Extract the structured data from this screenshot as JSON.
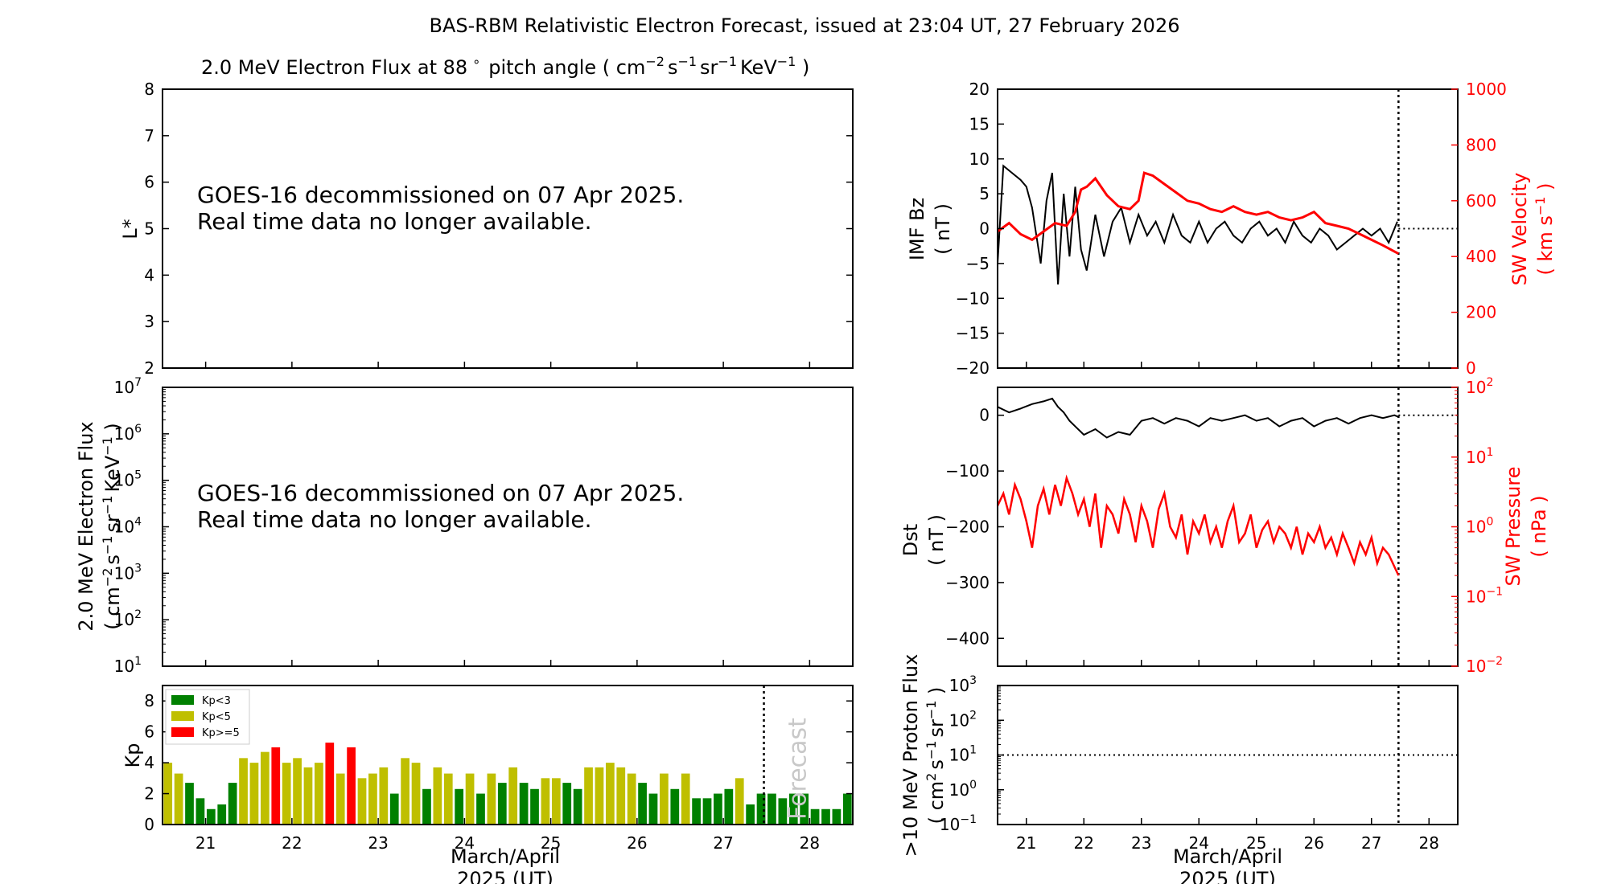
{
  "figure": {
    "title": "BAS-RBM Relativistic Electron Forecast, issued at 23:04 UT, 27 February 2026",
    "decommission_line1": "GOES-16 decommissioned on 07 Apr 2025.",
    "decommission_line2": "Real time data no longer available.",
    "xlabel_line1": "March/April",
    "xlabel_line2": "2025 (UT)",
    "forecast_label": "Forecast"
  },
  "chart_data": [
    {
      "id": "lstar",
      "type": "heatmap",
      "title_text": "2.0 MeV Electron Flux at 88",
      "title_units": "pitch angle ( cm-2 s-1 sr-1 KeV-1 )",
      "ylabel": "L*",
      "ylim": [
        2,
        8
      ],
      "yticks": [
        2,
        3,
        4,
        5,
        6,
        7,
        8
      ],
      "xlim": [
        20.5,
        28.5
      ],
      "xticks": [
        21,
        22,
        23,
        24,
        25,
        26,
        27,
        28
      ],
      "values": []
    },
    {
      "id": "eflux",
      "type": "line",
      "ylabel_line1": "2.0 MeV Electron Flux",
      "ylabel_line2": "( cm-2 s-1 sr-1 KeV-1 )",
      "yscale": "log",
      "ylim": [
        10,
        10000000
      ],
      "ytick_exponents": [
        1,
        2,
        3,
        4,
        5,
        6,
        7
      ],
      "xlim": [
        20.5,
        28.5
      ],
      "values": []
    },
    {
      "id": "kp",
      "type": "bar",
      "ylabel": "Kp",
      "ylim": [
        0,
        9
      ],
      "yticks": [
        0,
        2,
        4,
        6,
        8
      ],
      "xlim": [
        20.5,
        28.5
      ],
      "xticks": [
        21,
        22,
        23,
        24,
        25,
        26,
        27,
        28
      ],
      "forecast_start": 27.47,
      "bar_width_days": 0.1,
      "legend_position": "top-left",
      "legend": [
        {
          "label": "Kp<3",
          "color": "#008000"
        },
        {
          "label": "Kp<5",
          "color": "#bfbf00"
        },
        {
          "label": "Kp>=5",
          "color": "#ff0000"
        }
      ],
      "x_start": 20.5625,
      "x_step": 0.125,
      "values": [
        4.0,
        3.3,
        2.7,
        1.7,
        1.0,
        1.3,
        2.7,
        4.3,
        4.0,
        4.7,
        5.0,
        4.0,
        4.3,
        3.7,
        4.0,
        5.3,
        3.3,
        5.0,
        3.0,
        3.3,
        3.7,
        2.0,
        4.3,
        4.0,
        2.3,
        3.7,
        3.3,
        2.3,
        3.3,
        2.0,
        3.3,
        2.7,
        3.7,
        2.7,
        2.3,
        3.0,
        3.0,
        2.7,
        2.3,
        3.7,
        3.7,
        4.0,
        3.7,
        3.3,
        2.7,
        2.0,
        3.3,
        2.3,
        3.3,
        1.7,
        1.7,
        2.0,
        2.3,
        3.0,
        1.3,
        2.0,
        2.0,
        1.7,
        2.0,
        2.0,
        1.0,
        1.0,
        1.0,
        2.0
      ]
    },
    {
      "id": "imf",
      "type": "line",
      "ylabel_line1": "IMF Bz",
      "ylabel_line2": "( nT )",
      "ylim": [
        -20,
        20
      ],
      "yticks": [
        -20,
        -15,
        -10,
        -5,
        0,
        5,
        10,
        15,
        20
      ],
      "y2label_line1": "SW Velocity",
      "y2label_line2": "( km s-1 )",
      "y2lim": [
        0,
        1000
      ],
      "y2ticks": [
        0,
        200,
        400,
        600,
        800,
        1000
      ],
      "xlim": [
        20.5,
        28.5
      ],
      "now": 27.47,
      "series": [
        {
          "name": "IMF Bz",
          "color": "#000000",
          "x": [
            20.5,
            20.6,
            20.75,
            20.9,
            21.0,
            21.1,
            21.25,
            21.35,
            21.45,
            21.55,
            21.65,
            21.75,
            21.85,
            21.95,
            22.05,
            22.2,
            22.35,
            22.5,
            22.65,
            22.8,
            22.95,
            23.1,
            23.25,
            23.4,
            23.55,
            23.7,
            23.85,
            24.0,
            24.15,
            24.3,
            24.45,
            24.6,
            24.75,
            24.9,
            25.05,
            25.2,
            25.35,
            25.5,
            25.65,
            25.8,
            25.95,
            26.1,
            26.25,
            26.4,
            26.55,
            26.7,
            26.85,
            27.0,
            27.15,
            27.3,
            27.45
          ],
          "y": [
            -5,
            9,
            8,
            7,
            6,
            3,
            -5,
            4,
            8,
            -8,
            5,
            -4,
            6,
            -3,
            -6,
            2,
            -4,
            1,
            3,
            -2,
            2,
            -1,
            1,
            -2,
            2,
            -1,
            -2,
            1,
            -2,
            0,
            1,
            -1,
            -2,
            0,
            1,
            -1,
            0,
            -2,
            1,
            -1,
            -2,
            0,
            -1,
            -3,
            -2,
            -1,
            0,
            -1,
            0,
            -2,
            1
          ]
        },
        {
          "name": "SW Velocity",
          "color": "#ff0000",
          "x": [
            20.5,
            20.7,
            20.9,
            21.1,
            21.3,
            21.5,
            21.7,
            21.85,
            21.95,
            22.05,
            22.2,
            22.4,
            22.6,
            22.8,
            22.95,
            23.05,
            23.2,
            23.4,
            23.6,
            23.8,
            24.0,
            24.2,
            24.4,
            24.6,
            24.8,
            25.0,
            25.2,
            25.4,
            25.6,
            25.8,
            26.0,
            26.2,
            26.4,
            26.6,
            26.8,
            27.0,
            27.2,
            27.47
          ],
          "y": [
            490,
            520,
            480,
            460,
            490,
            520,
            510,
            560,
            640,
            650,
            680,
            620,
            580,
            570,
            600,
            700,
            690,
            660,
            630,
            600,
            590,
            570,
            560,
            580,
            560,
            550,
            560,
            540,
            530,
            540,
            560,
            520,
            510,
            500,
            480,
            460,
            440,
            410
          ]
        }
      ]
    },
    {
      "id": "dst",
      "type": "line",
      "ylabel_line1": "Dst",
      "ylabel_line2": "( nT )",
      "ylim": [
        -450,
        50
      ],
      "yticks": [
        -400,
        -300,
        -200,
        -100,
        0
      ],
      "y2label_line1": "SW Pressure",
      "y2label_line2": "( nPa )",
      "y2scale": "log",
      "y2lim": [
        0.01,
        100
      ],
      "y2tick_exponents": [
        -2,
        -1,
        0,
        1,
        2
      ],
      "xlim": [
        20.5,
        28.5
      ],
      "now": 27.47,
      "series": [
        {
          "name": "Dst",
          "color": "#000000",
          "x": [
            20.5,
            20.7,
            20.9,
            21.1,
            21.3,
            21.45,
            21.55,
            21.65,
            21.75,
            21.85,
            22.0,
            22.2,
            22.4,
            22.6,
            22.8,
            23.0,
            23.2,
            23.4,
            23.6,
            23.8,
            24.0,
            24.2,
            24.4,
            24.6,
            24.8,
            25.0,
            25.2,
            25.4,
            25.6,
            25.8,
            26.0,
            26.2,
            26.4,
            26.6,
            26.8,
            27.0,
            27.2,
            27.4,
            27.47
          ],
          "y": [
            15,
            5,
            12,
            20,
            25,
            30,
            15,
            5,
            -10,
            -20,
            -35,
            -25,
            -40,
            -30,
            -35,
            -10,
            -5,
            -15,
            -5,
            -10,
            -20,
            -5,
            -10,
            -5,
            0,
            -10,
            -5,
            -20,
            -10,
            -5,
            -20,
            -10,
            -5,
            -15,
            -5,
            0,
            -5,
            0,
            -3
          ]
        },
        {
          "name": "SW Pressure",
          "color": "#ff0000",
          "x": [
            20.5,
            20.6,
            20.7,
            20.8,
            20.9,
            21.0,
            21.1,
            21.2,
            21.3,
            21.4,
            21.5,
            21.6,
            21.7,
            21.8,
            21.9,
            22.0,
            22.1,
            22.2,
            22.3,
            22.4,
            22.5,
            22.6,
            22.7,
            22.8,
            22.9,
            23.0,
            23.1,
            23.2,
            23.3,
            23.4,
            23.5,
            23.6,
            23.7,
            23.8,
            23.9,
            24.0,
            24.1,
            24.2,
            24.3,
            24.4,
            24.5,
            24.6,
            24.7,
            24.8,
            24.9,
            25.0,
            25.1,
            25.2,
            25.3,
            25.4,
            25.5,
            25.6,
            25.7,
            25.8,
            25.9,
            26.0,
            26.1,
            26.2,
            26.3,
            26.4,
            26.5,
            26.6,
            26.7,
            26.8,
            26.9,
            27.0,
            27.1,
            27.2,
            27.3,
            27.47
          ],
          "y": [
            2.0,
            3.0,
            1.5,
            4.0,
            2.5,
            1.2,
            0.5,
            2.0,
            3.5,
            1.5,
            4.0,
            2.0,
            5.0,
            3.0,
            1.5,
            2.5,
            1.0,
            3.0,
            0.5,
            2.0,
            1.5,
            0.8,
            2.5,
            1.5,
            0.6,
            2.0,
            1.2,
            0.5,
            1.8,
            3.0,
            1.0,
            0.7,
            1.5,
            0.4,
            1.2,
            0.8,
            1.5,
            0.6,
            1.0,
            0.5,
            1.2,
            2.0,
            0.6,
            0.8,
            1.5,
            0.5,
            0.9,
            1.2,
            0.6,
            1.0,
            0.8,
            0.5,
            1.0,
            0.4,
            0.8,
            0.6,
            1.0,
            0.5,
            0.7,
            0.4,
            0.8,
            0.5,
            0.3,
            0.6,
            0.4,
            0.7,
            0.3,
            0.5,
            0.4,
            0.2
          ]
        }
      ]
    },
    {
      "id": "proton",
      "type": "line",
      "ylabel_line1": ">10 MeV Proton Flux",
      "ylabel_line2": "( cm2 s-1 sr-1 )",
      "yscale": "log",
      "ylim": [
        0.1,
        1000
      ],
      "ytick_exponents": [
        -1,
        0,
        1,
        2,
        3
      ],
      "threshold": 10,
      "xlim": [
        20.5,
        28.5
      ],
      "xticks": [
        21,
        22,
        23,
        24,
        25,
        26,
        27,
        28
      ],
      "now": 27.47,
      "values": []
    }
  ]
}
